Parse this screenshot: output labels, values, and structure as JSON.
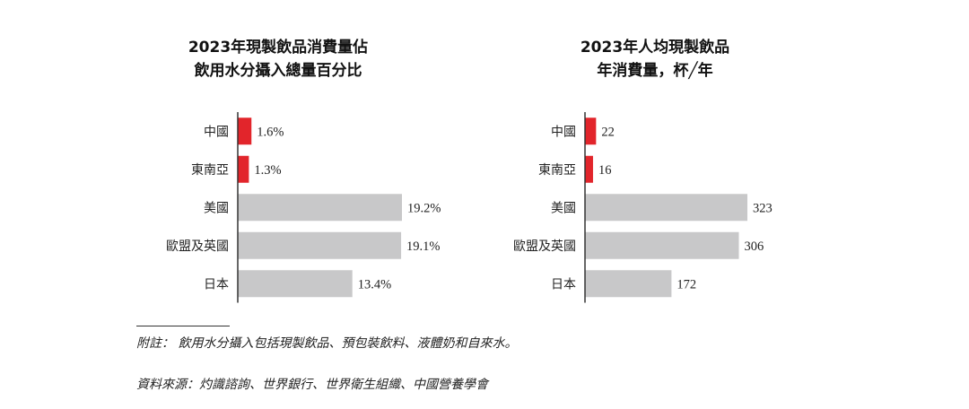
{
  "chart_data": [
    {
      "type": "bar",
      "orientation": "horizontal",
      "title_lines": [
        "2023年現製飲品消費量佔",
        "飲用水分攝入總量百分比"
      ],
      "categories": [
        "中國",
        "東南亞",
        "美國",
        "歐盟及英國",
        "日本"
      ],
      "values": [
        1.6,
        1.3,
        19.2,
        19.1,
        13.4
      ],
      "value_labels": [
        "1.6%",
        "1.3%",
        "19.2%",
        "19.1%",
        "13.4%"
      ],
      "colors": [
        "#e2252b",
        "#e2252b",
        "#c8c8c9",
        "#c8c8c9",
        "#c8c8c9"
      ],
      "xlim": [
        0,
        19.2
      ],
      "grid": false,
      "legend": "none"
    },
    {
      "type": "bar",
      "orientation": "horizontal",
      "title_lines": [
        "2023年人均現製飲品",
        "年消費量，杯╱年"
      ],
      "categories": [
        "中國",
        "東南亞",
        "美國",
        "歐盟及英國",
        "日本"
      ],
      "values": [
        22,
        16,
        323,
        306,
        172
      ],
      "value_labels": [
        "22",
        "16",
        "323",
        "306",
        "172"
      ],
      "colors": [
        "#e2252b",
        "#e2252b",
        "#c8c8c9",
        "#c8c8c9",
        "#c8c8c9"
      ],
      "xlim": [
        0,
        323
      ],
      "grid": false,
      "legend": "none"
    }
  ],
  "footnote": {
    "note": "附註： 飲用水分攝入包括現製飲品、預包裝飲料、液體奶和自來水。",
    "source": "資料來源：灼識諮詢、世界銀行、世界衛生組織、中國營養學會"
  },
  "colors": {
    "highlight": "#e2252b",
    "bar": "#c8c8c9",
    "axis": "#333333"
  }
}
